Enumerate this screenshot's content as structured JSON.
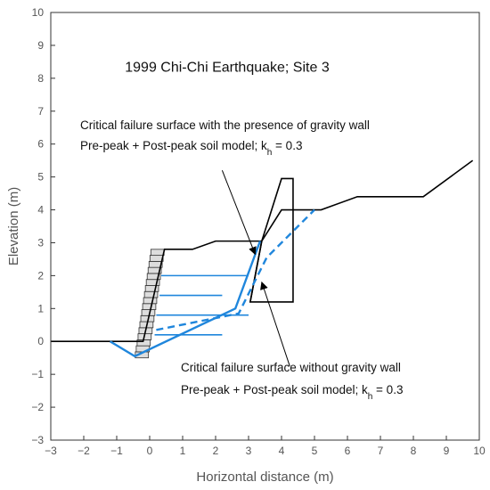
{
  "chart_data": {
    "type": "line",
    "title": "1999 Chi-Chi Earthquake; Site 3",
    "xlabel": "Horizontal distance (m)",
    "ylabel": "Elevation (m)",
    "xlim": [
      -3,
      10
    ],
    "ylim": [
      -3,
      10
    ],
    "xticks": [
      -3,
      -2,
      -1,
      0,
      1,
      2,
      3,
      4,
      5,
      6,
      7,
      8,
      9,
      10
    ],
    "yticks": [
      -3,
      -2,
      -1,
      0,
      1,
      2,
      3,
      4,
      5,
      6,
      7,
      8,
      9,
      10
    ],
    "grid": false,
    "colors": {
      "ground": "#000000",
      "failure": "#1f86dc",
      "block_face": "#dddddd",
      "block_edge": "#333333"
    },
    "ground_profile": {
      "x": [
        -3,
        -0.2,
        0.45,
        0.45,
        1.3,
        2.0,
        3.0,
        3.4,
        4.0,
        5.2,
        6.3,
        8.3,
        9.8
      ],
      "y": [
        0,
        0,
        2.8,
        2.8,
        2.8,
        3.05,
        3.05,
        3.05,
        4.0,
        4.0,
        4.4,
        4.4,
        5.5
      ]
    },
    "wall_outline": {
      "x": [
        3.4,
        3.05,
        3.4,
        4.35,
        4.35,
        4.0,
        3.4,
        3.05
      ],
      "y": [
        3.05,
        1.2,
        1.2,
        1.2,
        4.95,
        4.95,
        3.05,
        1.2
      ]
    },
    "wall_face": {
      "x": [
        3.05,
        3.4
      ],
      "y": [
        1.2,
        3.05
      ]
    },
    "block_wall": {
      "x_start": -0.25,
      "y_start": -0.5,
      "x_end": 0.25,
      "y_end": 2.8,
      "count": 18
    },
    "series": [
      {
        "label": "Critical failure surface with the presence of gravity wall",
        "style": "solid",
        "x": [
          -1.2,
          -0.45,
          2.6,
          3.35
        ],
        "y": [
          0,
          -0.45,
          1.0,
          3.05
        ]
      },
      {
        "label": "Critical failure surface without gravity wall",
        "style": "dashed",
        "x": [
          0.2,
          2.7,
          3.55,
          5.0
        ],
        "y": [
          0.35,
          0.85,
          2.55,
          4.0
        ]
      }
    ],
    "reinforcement": [
      {
        "x1": 0.15,
        "x2": 2.2,
        "y": 0.2
      },
      {
        "x1": 0.2,
        "x2": 3.0,
        "y": 0.8
      },
      {
        "x1": 0.3,
        "x2": 2.2,
        "y": 1.4
      },
      {
        "x1": 0.35,
        "x2": 3.0,
        "y": 2.0
      }
    ],
    "annotations": [
      {
        "line1": "Critical failure surface with the presence of gravity wall",
        "line2_prefix": "Pre-peak + Post-peak soil model; k",
        "line2_sub": "h",
        "line2_suffix": " = 0.3",
        "arrow_from": [
          2.2,
          5.2
        ],
        "arrow_to": [
          3.2,
          2.65
        ]
      },
      {
        "line1": "Critical failure surface without gravity wall",
        "line2_prefix": "Pre-peak + Post-peak soil model; k",
        "line2_sub": "h",
        "line2_suffix": " = 0.3",
        "arrow_from": [
          4.25,
          -0.75
        ],
        "arrow_to": [
          3.4,
          1.8
        ]
      }
    ]
  }
}
